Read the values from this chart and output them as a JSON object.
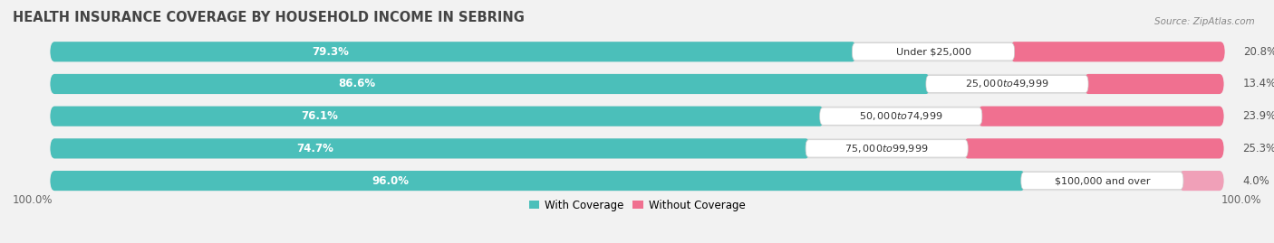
{
  "title": "HEALTH INSURANCE COVERAGE BY HOUSEHOLD INCOME IN SEBRING",
  "source": "Source: ZipAtlas.com",
  "categories": [
    "Under $25,000",
    "$25,000 to $49,999",
    "$50,000 to $74,999",
    "$75,000 to $99,999",
    "$100,000 and over"
  ],
  "with_coverage": [
    79.3,
    86.6,
    76.1,
    74.7,
    96.0
  ],
  "without_coverage": [
    20.8,
    13.4,
    23.9,
    25.3,
    4.0
  ],
  "coverage_color": "#4BBFBA",
  "no_coverage_color": "#F07090",
  "no_coverage_color_light": "#F0A0B8",
  "background_color": "#f2f2f2",
  "bar_bg_color": "#e0e0e0",
  "bar_height": 0.62,
  "legend_with": "With Coverage",
  "legend_without": "Without Coverage",
  "title_fontsize": 10.5,
  "label_fontsize": 8.5,
  "tick_fontsize": 8.5,
  "source_fontsize": 7.5
}
